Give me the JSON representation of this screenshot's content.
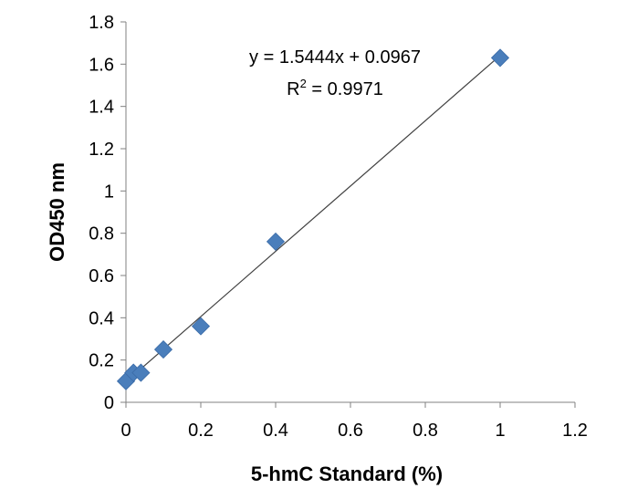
{
  "chart_data": {
    "type": "scatter",
    "title": "",
    "xlabel": "5-hmC Standard (%)",
    "ylabel": "OD450 nm",
    "xlim": [
      0,
      1.2
    ],
    "ylim": [
      0,
      1.8
    ],
    "x_ticks": [
      "0",
      "0.2",
      "0.4",
      "0.6",
      "0.8",
      "1",
      "1.2"
    ],
    "y_ticks": [
      "0",
      "0.2",
      "0.4",
      "0.6",
      "0.8",
      "1",
      "1.2",
      "1.4",
      "1.6",
      "1.8"
    ],
    "grid": false,
    "legend": "none",
    "marker": "diamond",
    "marker_color": "#4A7EBB",
    "trendline_color": "#404040",
    "series": [
      {
        "x": [
          0,
          0.02,
          0.04,
          0.1,
          0.2,
          0.4,
          1.0
        ],
        "y": [
          0.1,
          0.14,
          0.14,
          0.25,
          0.36,
          0.76,
          1.63
        ]
      }
    ],
    "trendline": {
      "slope": 1.5444,
      "intercept": 0.0967,
      "equation": "y = 1.5444x + 0.0967",
      "r_squared": {
        "prefix": "R",
        "exponent": "2",
        "value": " = 0.9971"
      }
    }
  }
}
